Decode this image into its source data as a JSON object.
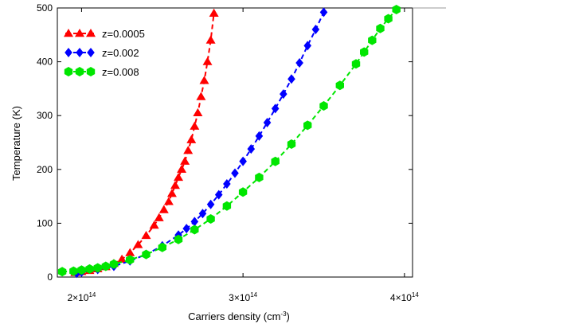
{
  "chart_data": {
    "type": "scatter",
    "title": "",
    "xlabel": "Carriers density (cm",
    "xlabel_sup": "-3",
    "xlabel_end": ")",
    "ylabel": "Temperature (K)",
    "xlim": [
      185000000000000.0,
      405000000000000.0
    ],
    "ylim": [
      0,
      500
    ],
    "grid": false,
    "legend_position": "top-left",
    "x_ticks": [
      {
        "value": 200000000000000.0,
        "mantissa": "2×10",
        "exp": "14"
      },
      {
        "value": 300000000000000.0,
        "mantissa": "3×10",
        "exp": "14"
      },
      {
        "value": 400000000000000.0,
        "mantissa": "4×10",
        "exp": "14"
      }
    ],
    "y_ticks": [
      0,
      100,
      200,
      300,
      400,
      500
    ],
    "series": [
      {
        "name": "z=0.0005",
        "color": "#ff0000",
        "marker": "triangle",
        "x": [
          196000000000000.0,
          198000000000000.0,
          200000000000000.0,
          205000000000000.0,
          210000000000000.0,
          215000000000000.0,
          220000000000000.0,
          225000000000000.0,
          230000000000000.0,
          235000000000000.0,
          240000000000000.0,
          245000000000000.0,
          248000000000000.0,
          251000000000000.0,
          254000000000000.0,
          256000000000000.0,
          258000000000000.0,
          260000000000000.0,
          262000000000000.0,
          264000000000000.0,
          266000000000000.0,
          268000000000000.0,
          270000000000000.0,
          272000000000000.0,
          274000000000000.0,
          276000000000000.0,
          278000000000000.0,
          280000000000000.0,
          282000000000000.0
        ],
        "y": [
          8,
          9,
          10,
          12,
          15,
          19,
          25,
          33,
          45,
          60,
          77,
          96,
          110,
          125,
          140,
          155,
          170,
          185,
          200,
          215,
          235,
          255,
          280,
          305,
          335,
          365,
          400,
          440,
          490
        ]
      },
      {
        "name": "z=0.002",
        "color": "#0000ff",
        "marker": "diamond",
        "x": [
          197000000000000.0,
          200000000000000.0,
          210000000000000.0,
          220000000000000.0,
          230000000000000.0,
          240000000000000.0,
          250000000000000.0,
          260000000000000.0,
          265000000000000.0,
          270000000000000.0,
          275000000000000.0,
          280000000000000.0,
          285000000000000.0,
          290000000000000.0,
          295000000000000.0,
          300000000000000.0,
          305000000000000.0,
          310000000000000.0,
          315000000000000.0,
          320000000000000.0,
          325000000000000.0,
          330000000000000.0,
          335000000000000.0,
          340000000000000.0,
          345000000000000.0,
          350000000000000.0
        ],
        "y": [
          7,
          9,
          14,
          20,
          30,
          42,
          58,
          78,
          90,
          103,
          118,
          135,
          153,
          173,
          193,
          215,
          238,
          262,
          287,
          313,
          340,
          368,
          398,
          430,
          460,
          492
        ]
      },
      {
        "name": "z=0.008",
        "color": "#00e600",
        "marker": "hexagon",
        "x": [
          188000000000000.0,
          195000000000000.0,
          200000000000000.0,
          205000000000000.0,
          210000000000000.0,
          215000000000000.0,
          220000000000000.0,
          230000000000000.0,
          240000000000000.0,
          250000000000000.0,
          260000000000000.0,
          270000000000000.0,
          280000000000000.0,
          290000000000000.0,
          300000000000000.0,
          310000000000000.0,
          320000000000000.0,
          330000000000000.0,
          340000000000000.0,
          350000000000000.0,
          360000000000000.0,
          370000000000000.0,
          375000000000000.0,
          380000000000000.0,
          385000000000000.0,
          390000000000000.0,
          395000000000000.0
        ],
        "y": [
          10,
          11,
          13,
          15,
          17,
          20,
          24,
          32,
          42,
          55,
          70,
          88,
          108,
          132,
          158,
          185,
          215,
          247,
          282,
          318,
          356,
          396,
          418,
          440,
          462,
          480,
          497
        ]
      }
    ]
  }
}
